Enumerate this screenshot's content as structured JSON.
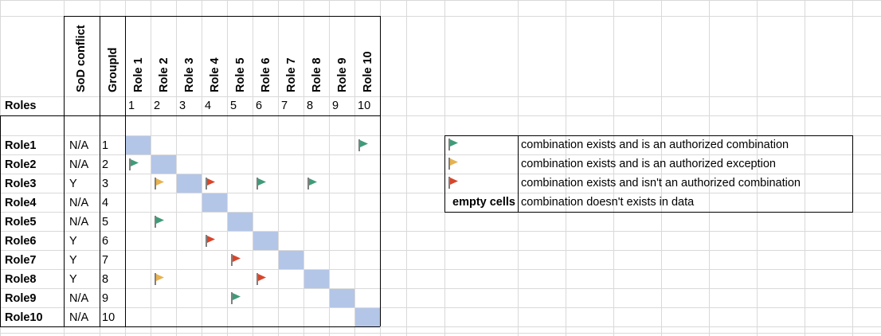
{
  "columns": {
    "sod": "SoD conflict",
    "group": "GroupId",
    "roles": [
      "Role 1",
      "Role 2",
      "Role 3",
      "Role 4",
      "Role 5",
      "Role 6",
      "Role 7",
      "Role 8",
      "Role 9",
      "Role 10"
    ]
  },
  "header_row": {
    "label": "Roles",
    "numbers": [
      "1",
      "2",
      "3",
      "4",
      "5",
      "6",
      "7",
      "8",
      "9",
      "10"
    ]
  },
  "flag_colors": {
    "green": "#3f9b78",
    "yellow": "#e7b24f",
    "red": "#d8452a"
  },
  "diagonal_color": "#b4c6e7",
  "rows": [
    {
      "role": "Role1",
      "sod": "N/A",
      "group": "1",
      "flags": [
        null,
        null,
        null,
        null,
        null,
        null,
        null,
        null,
        null,
        "green"
      ]
    },
    {
      "role": "Role2",
      "sod": "N/A",
      "group": "2",
      "flags": [
        "green",
        null,
        null,
        null,
        null,
        null,
        null,
        null,
        null,
        null
      ]
    },
    {
      "role": "Role3",
      "sod": "Y",
      "group": "3",
      "flags": [
        null,
        "yellow",
        null,
        "red",
        null,
        "green",
        null,
        "green",
        null,
        null
      ]
    },
    {
      "role": "Role4",
      "sod": "N/A",
      "group": "4",
      "flags": [
        null,
        null,
        null,
        null,
        null,
        null,
        null,
        null,
        null,
        null
      ]
    },
    {
      "role": "Role5",
      "sod": "N/A",
      "group": "5",
      "flags": [
        null,
        "green",
        null,
        null,
        null,
        null,
        null,
        null,
        null,
        null
      ]
    },
    {
      "role": "Role6",
      "sod": "Y",
      "group": "6",
      "flags": [
        null,
        null,
        null,
        "red",
        null,
        null,
        null,
        null,
        null,
        null
      ]
    },
    {
      "role": "Role7",
      "sod": "Y",
      "group": "7",
      "flags": [
        null,
        null,
        null,
        null,
        "red",
        null,
        null,
        null,
        null,
        null
      ]
    },
    {
      "role": "Role8",
      "sod": "Y",
      "group": "8",
      "flags": [
        null,
        "yellow",
        null,
        null,
        null,
        "red",
        null,
        null,
        null,
        null
      ]
    },
    {
      "role": "Role9",
      "sod": "N/A",
      "group": "9",
      "flags": [
        null,
        null,
        null,
        null,
        "green",
        null,
        null,
        null,
        null,
        null
      ]
    },
    {
      "role": "Role10",
      "sod": "N/A",
      "group": "10",
      "flags": [
        null,
        null,
        null,
        null,
        null,
        null,
        null,
        null,
        null,
        null
      ]
    }
  ],
  "legend": [
    {
      "flag": "green",
      "text": "combination exists and is an authorized combination"
    },
    {
      "flag": "yellow",
      "text": "combination exists and is an authorized exception"
    },
    {
      "flag": "red",
      "text": "combination exists and isn't an authorized combination"
    },
    {
      "label": "empty cells",
      "text": "combination doesn't exists in data"
    }
  ]
}
